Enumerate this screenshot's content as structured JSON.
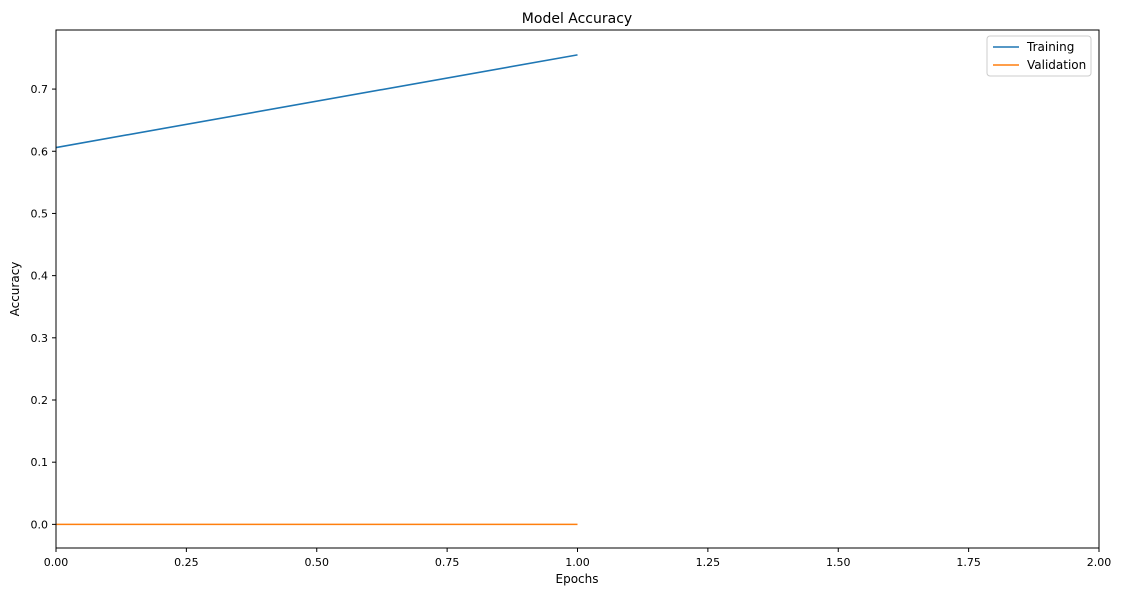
{
  "chart_data": {
    "type": "line",
    "title": "Model Accuracy",
    "xlabel": "Epochs",
    "ylabel": "Accuracy",
    "xlim": [
      0.0,
      2.0
    ],
    "ylim": [
      -0.038,
      0.795
    ],
    "xticks": [
      0.0,
      0.25,
      0.5,
      0.75,
      1.0,
      1.25,
      1.5,
      1.75,
      2.0
    ],
    "xtick_labels": [
      "0.00",
      "0.25",
      "0.50",
      "0.75",
      "1.00",
      "1.25",
      "1.50",
      "1.75",
      "2.00"
    ],
    "yticks": [
      0.0,
      0.1,
      0.2,
      0.3,
      0.4,
      0.5,
      0.6,
      0.7
    ],
    "ytick_labels": [
      "0.0",
      "0.1",
      "0.2",
      "0.3",
      "0.4",
      "0.5",
      "0.6",
      "0.7"
    ],
    "grid": false,
    "legend_position": "top-right",
    "series": [
      {
        "name": "Training",
        "color": "#1f77b4",
        "x": [
          0,
          1
        ],
        "y": [
          0.606,
          0.755
        ]
      },
      {
        "name": "Validation",
        "color": "#ff7f0e",
        "x": [
          0,
          1
        ],
        "y": [
          0.0,
          0.0
        ]
      }
    ]
  }
}
